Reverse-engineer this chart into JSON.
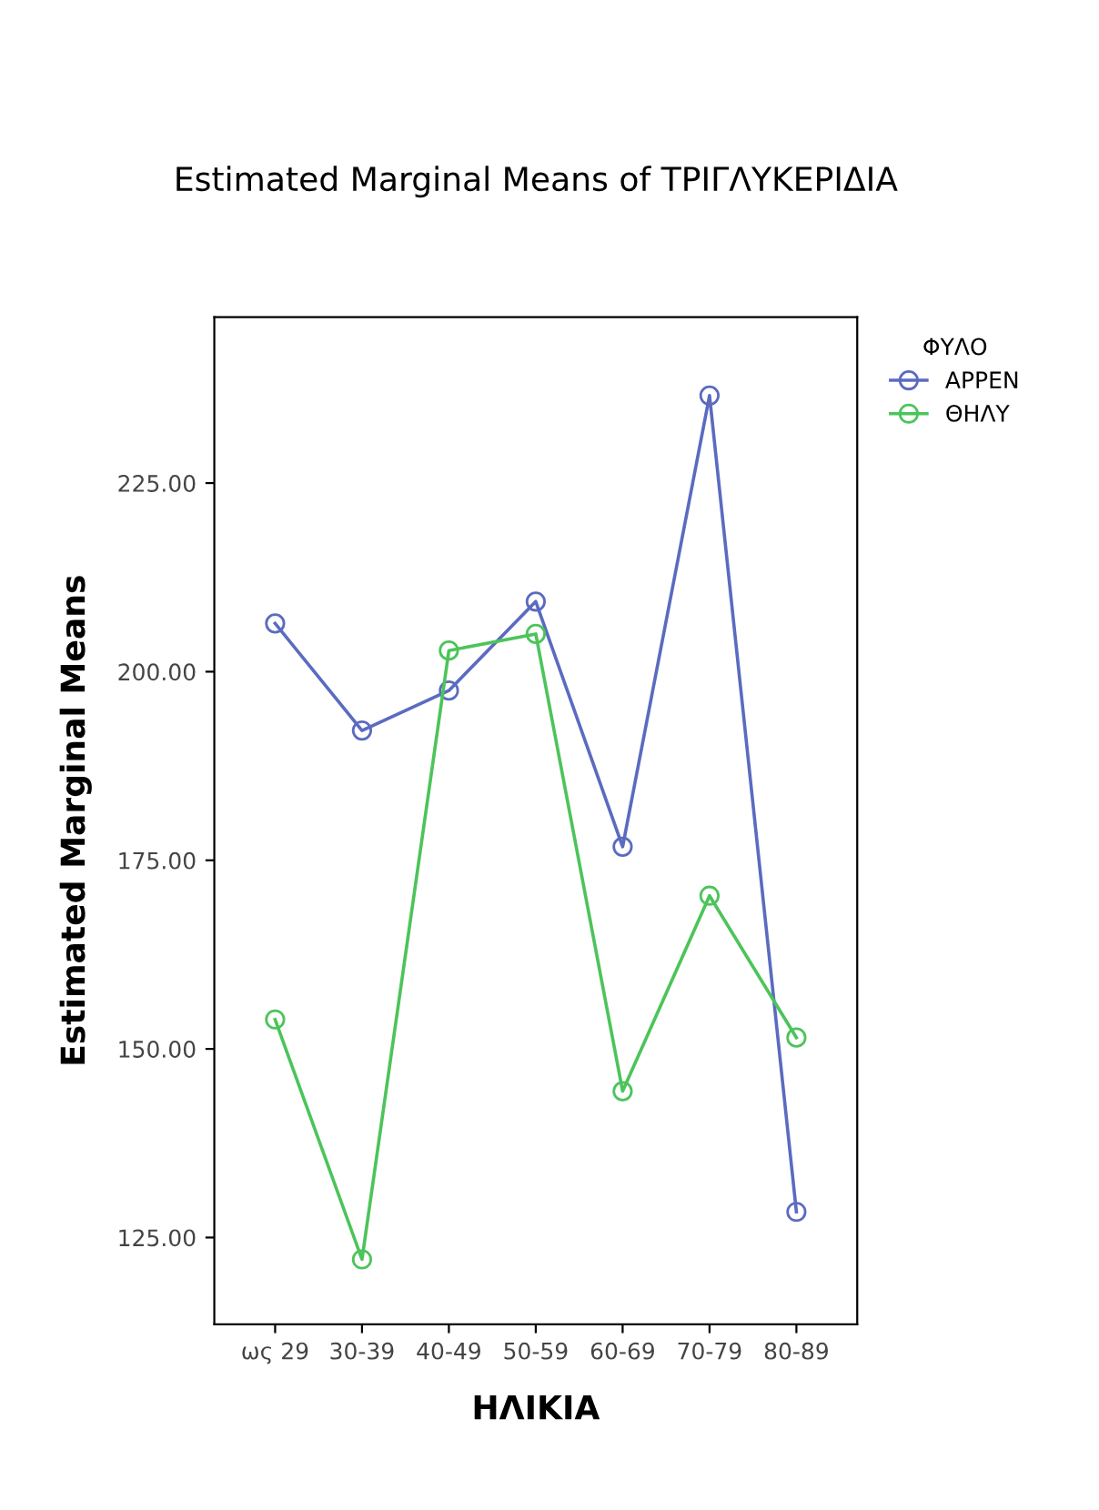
{
  "chart_data": {
    "type": "line",
    "title": "Estimated Marginal Means of ΤΡΙΓΛΥΚΕΡΙΔΙΑ",
    "xlabel": "ΗΛΙΚΙΑ",
    "ylabel": "Estimated Marginal Means",
    "legend_title": "ΦΥΛΟ",
    "categories": [
      "ως 29",
      "30-39",
      "40-49",
      "50-59",
      "60-69",
      "70-79",
      "80-89"
    ],
    "series": [
      {
        "name": "ΑΡΡΕΝ",
        "color": "#5b6bc0",
        "values": [
          206.4,
          192.2,
          197.5,
          209.3,
          176.8,
          236.6,
          128.4
        ]
      },
      {
        "name": "ΘΗΛΥ",
        "color": "#4cc45a",
        "values": [
          153.9,
          122.1,
          202.8,
          205.0,
          144.4,
          170.3,
          151.5
        ]
      }
    ],
    "ylim": [
      113.5,
      247
    ],
    "yticks": [
      {
        "value": 125,
        "label": "125.00"
      },
      {
        "value": 150,
        "label": "150.00"
      },
      {
        "value": 175,
        "label": "175.00"
      },
      {
        "value": 200,
        "label": "200.00"
      },
      {
        "value": 225,
        "label": "225.00"
      }
    ],
    "marker": "circle",
    "line_style": "solid",
    "grid": false,
    "legend": "top right"
  }
}
